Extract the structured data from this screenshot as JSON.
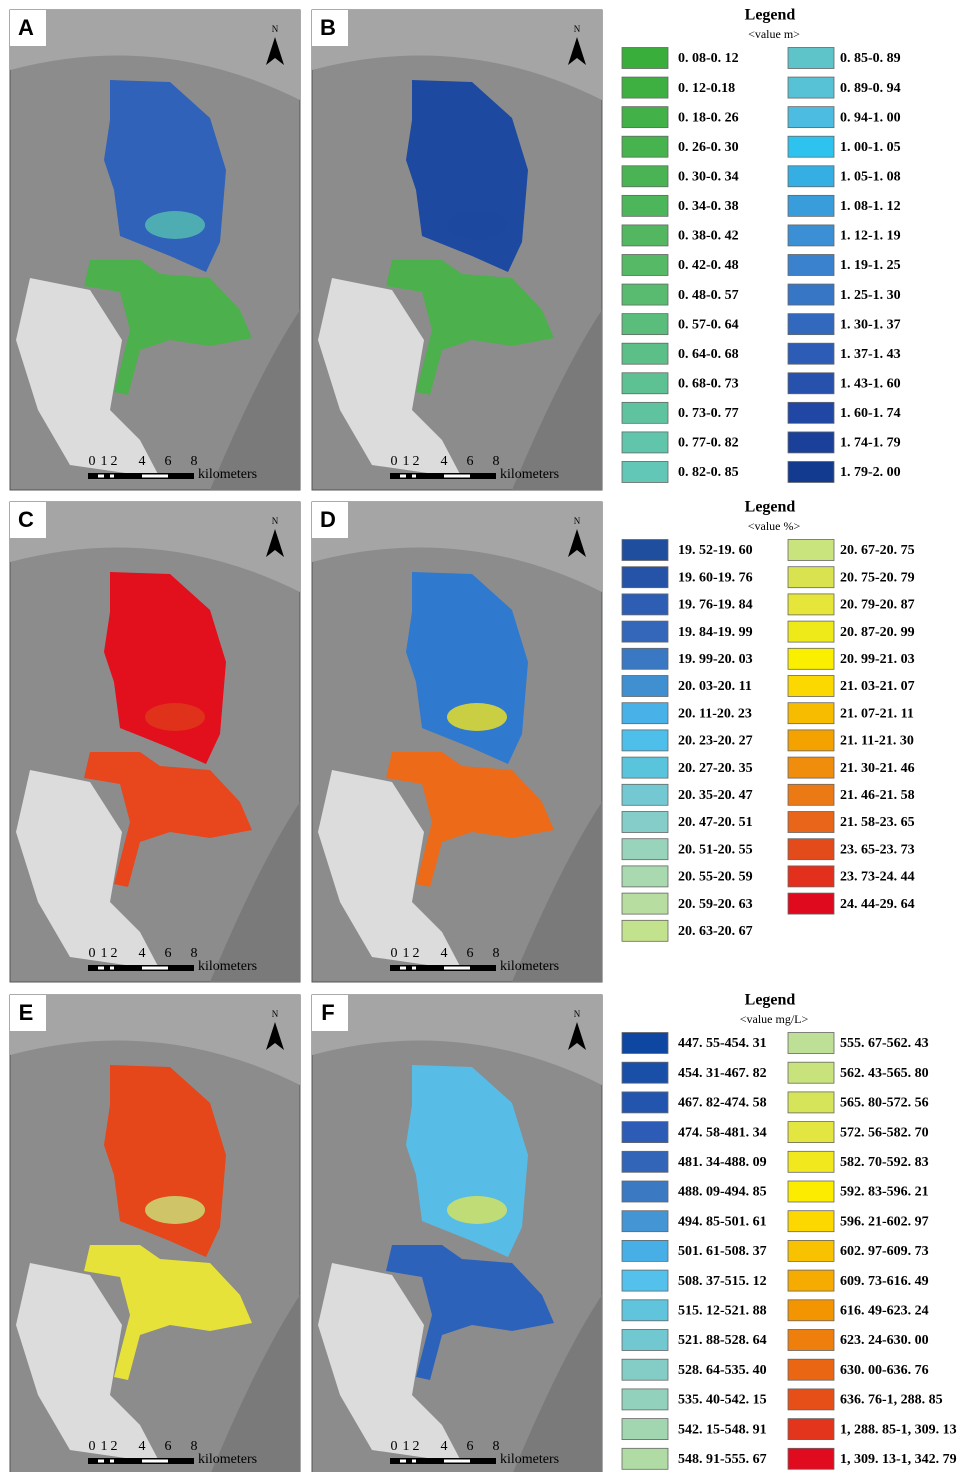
{
  "panels": [
    {
      "label": "A",
      "north": "N",
      "scale": {
        "ticks": [
          "0",
          "1",
          "2",
          "4",
          "6",
          "8"
        ],
        "unit": "kilometers"
      }
    },
    {
      "label": "B",
      "north": "N",
      "scale": {
        "ticks": [
          "0",
          "1",
          "2",
          "4",
          "6",
          "8"
        ],
        "unit": "kilometers"
      }
    },
    {
      "label": "C",
      "north": "N",
      "scale": {
        "ticks": [
          "0",
          "1",
          "2",
          "4",
          "6",
          "8"
        ],
        "unit": "kilometers"
      }
    },
    {
      "label": "D",
      "north": "N",
      "scale": {
        "ticks": [
          "0",
          "1",
          "2",
          "4",
          "6",
          "8"
        ],
        "unit": "kilometers"
      }
    },
    {
      "label": "E",
      "north": "N",
      "scale": {
        "ticks": [
          "0",
          "1",
          "2",
          "4",
          "6",
          "8"
        ],
        "unit": "kilometers"
      }
    },
    {
      "label": "F",
      "north": "N",
      "scale": {
        "ticks": [
          "0",
          "1",
          "2",
          "4",
          "6",
          "8"
        ],
        "unit": "kilometers"
      }
    }
  ],
  "legends": [
    {
      "title": "Legend",
      "unit": "<value m>",
      "labels": [
        "0. 08-0. 12",
        "0. 12-0.18",
        "0. 18-0. 26",
        "0. 26-0. 30",
        "0. 30-0. 34",
        "0. 34-0. 38",
        "0. 38-0. 42",
        "0. 42-0. 48",
        "0. 48-0. 57",
        "0. 57-0. 64",
        "0. 64-0. 68",
        "0. 68-0. 73",
        "0. 73-0. 77",
        "0. 77-0. 82",
        "0. 82-0. 85",
        "0. 85-0. 89",
        "0. 89-0. 94",
        "0. 94-1. 00",
        "1. 00-1. 05",
        "1. 05-1. 08",
        "1. 08-1. 12",
        "1. 12-1. 19",
        "1. 19-1. 25",
        "1. 25-1. 30",
        "1. 30-1. 37",
        "1. 37-1. 43",
        "1. 43-1. 60",
        "1. 60-1. 74",
        "1. 74-1. 79",
        "1. 79-2. 00"
      ],
      "colors": [
        "#3aae3a",
        "#3eb042",
        "#42b148",
        "#46b34e",
        "#4ab454",
        "#4eb65a",
        "#52b760",
        "#56b966",
        "#58bb70",
        "#5abd7c",
        "#5cbf88",
        "#5ec193",
        "#60c39f",
        "#60c5ab",
        "#62c7b7",
        "#5fc4c9",
        "#57c2d6",
        "#4cbde0",
        "#2ec3ee",
        "#35aee3",
        "#3a9ddb",
        "#3b8fd4",
        "#3a82cd",
        "#3775c5",
        "#3268bd",
        "#2c5cb5",
        "#2651ac",
        "#1f47a3",
        "#1a4099",
        "#123a8f"
      ]
    },
    {
      "title": "Legend",
      "unit": "<value %>",
      "labels": [
        "19. 52-19. 60",
        "19. 60-19. 76",
        "19. 76-19. 84",
        "19. 84-19. 99",
        "19. 99-20. 03",
        "20. 03-20. 11",
        "20. 11-20. 23",
        "20. 23-20. 27",
        "20. 27-20. 35",
        "20. 35-20. 47",
        "20. 47-20. 51",
        "20. 51-20. 55",
        "20. 55-20. 59",
        "20. 59-20. 63",
        "20. 63-20. 67",
        "20. 67-20. 75",
        "20. 75-20. 79",
        "20. 79-20. 87",
        "20. 87-20. 99",
        "20. 99-21. 03",
        "21. 03-21. 07",
        "21. 07-21. 11",
        "21. 11-21. 30",
        "21. 30-21. 46",
        "21. 46-21. 58",
        "21. 58-23. 65",
        "23. 65-23. 73",
        "23. 73-24. 44",
        "24. 44-29. 64"
      ],
      "colors": [
        "#1f4e9f",
        "#2453a7",
        "#2d5eb3",
        "#3466b9",
        "#3b78c4",
        "#3f8fd1",
        "#48b1e8",
        "#4dbfea",
        "#5ac4dc",
        "#73c8d2",
        "#84cdc8",
        "#98d3bb",
        "#a9d9ae",
        "#b7dea0",
        "#c3e28e",
        "#c9e47c",
        "#d9e350",
        "#e6e53a",
        "#eeea1a",
        "#fbef00",
        "#fbd900",
        "#f7bb00",
        "#f4a200",
        "#f08d0d",
        "#ec7a14",
        "#e8651a",
        "#e44b1b",
        "#e2301c",
        "#df0a1e"
      ]
    },
    {
      "title": "Legend",
      "unit": "<value mg/L>",
      "labels": [
        "447. 55-454. 31",
        "454. 31-467. 82",
        "467. 82-474. 58",
        "474. 58-481. 34",
        "481. 34-488. 09",
        "488. 09-494. 85",
        "494. 85-501. 61",
        "501. 61-508. 37",
        "508. 37-515. 12",
        "515. 12-521. 88",
        "521. 88-528. 64",
        "528. 64-535. 40",
        "535. 40-542. 15",
        "542. 15-548. 91",
        "548. 91-555. 67",
        "555. 67-562. 43",
        "562. 43-565. 80",
        "565. 80-572. 56",
        "572. 56-582. 70",
        "582. 70-592. 83",
        "592. 83-596. 21",
        "596. 21-602. 97",
        "602. 97-609. 73",
        "609. 73-616. 49",
        "616. 49-623. 24",
        "623. 24-630. 00",
        "630. 00-636. 76",
        "636. 76-1, 288. 85",
        "1, 288. 85-1, 309. 13",
        "1, 309. 13-1, 342. 79"
      ],
      "colors": [
        "#0d47a1",
        "#1a4fa8",
        "#2455ae",
        "#2c5cb5",
        "#3264b8",
        "#3b79c3",
        "#4495d4",
        "#48afe6",
        "#53c1ec",
        "#60c4dc",
        "#72c8d0",
        "#84cdc6",
        "#92d1bc",
        "#a2d6b0",
        "#b1dba4",
        "#bedf96",
        "#c9e37c",
        "#d6e45a",
        "#e3e640",
        "#f1e91e",
        "#fcec00",
        "#fcd800",
        "#f8c200",
        "#f5ab00",
        "#f29500",
        "#ee7f0c",
        "#ea6613",
        "#e65018",
        "#e3341c",
        "#e00b1f"
      ]
    }
  ]
}
